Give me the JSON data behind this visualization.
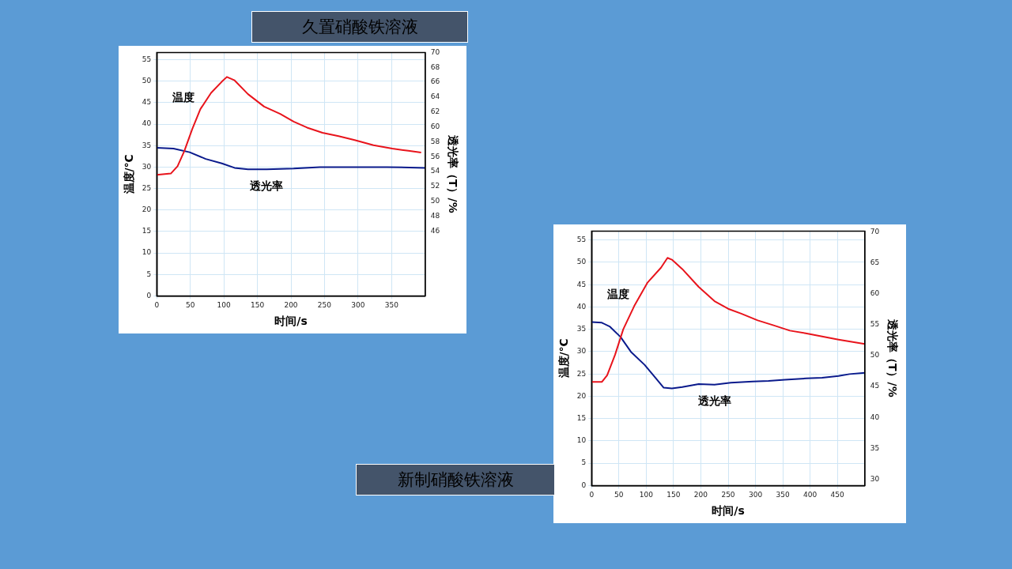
{
  "chart_data": [
    {
      "type": "line",
      "title": "久置硝酸铁溶液",
      "xlabel": "时间/s",
      "ylabel": "温度/℃",
      "y2label": "透光率（T）/%",
      "xlim": [
        0,
        400
      ],
      "xticks": [
        0,
        50,
        100,
        150,
        200,
        250,
        300,
        350
      ],
      "ylim": [
        0,
        56.7
      ],
      "yticks": [
        0,
        5,
        10,
        15,
        20,
        25,
        30,
        35,
        40,
        45,
        50,
        55
      ],
      "y2lim": [
        37.3,
        70
      ],
      "y2ticks": [
        46,
        48,
        50,
        52,
        54,
        56,
        58,
        60,
        62,
        64,
        66,
        68,
        70
      ],
      "grid": true,
      "series": [
        {
          "name": "温度",
          "color": "#e8141c",
          "x": [
            0,
            21,
            31,
            41,
            53,
            65,
            81,
            97,
            104.5,
            116,
            136,
            160,
            184,
            204,
            224,
            247,
            271,
            295,
            323,
            351,
            375,
            394
          ],
          "values": [
            28.2,
            28.5,
            30.2,
            33.7,
            38.9,
            43.5,
            47.3,
            49.9,
            51.0,
            50.2,
            47.0,
            44.1,
            42.4,
            40.6,
            39.2,
            38.0,
            37.2,
            36.3,
            35.1,
            34.3,
            33.8,
            33.4
          ]
        },
        {
          "name": "透光率",
          "color": "#0a1a8c",
          "axis": "y2",
          "x": [
            0,
            25,
            49,
            73,
            97,
            116,
            136,
            164,
            204,
            243,
            283,
            343,
            400
          ],
          "values": [
            57.2,
            57.1,
            56.6,
            55.7,
            55.1,
            54.5,
            54.3,
            54.3,
            54.4,
            54.6,
            54.6,
            54.6,
            54.5
          ]
        }
      ],
      "legend": false
    },
    {
      "type": "line",
      "title": "新制硝酸铁溶液",
      "xlabel": "时间/s",
      "ylabel": "温度/℃",
      "y2label": "透光率（T）/%",
      "xlim": [
        0,
        500
      ],
      "xticks": [
        0,
        50,
        100,
        150,
        200,
        250,
        300,
        350,
        400,
        450
      ],
      "ylim": [
        0,
        57
      ],
      "yticks": [
        0,
        5,
        10,
        15,
        20,
        25,
        30,
        35,
        40,
        45,
        50,
        55
      ],
      "y2lim": [
        29,
        70.1
      ],
      "y2ticks": [
        30,
        35,
        40,
        45,
        50,
        55,
        60,
        65,
        70
      ],
      "grid": true,
      "series": [
        {
          "name": "温度",
          "color": "#e8141c",
          "x": [
            0,
            18.7,
            28.5,
            43,
            58,
            78,
            102,
            127,
            139,
            147,
            166,
            196,
            225,
            250,
            274,
            304,
            333,
            363,
            392,
            422,
            452,
            500
          ],
          "values": [
            23.2,
            23.2,
            24.7,
            29.3,
            35.0,
            40.2,
            45.4,
            48.8,
            51.0,
            50.6,
            48.5,
            44.5,
            41.3,
            39.6,
            38.5,
            37.0,
            35.9,
            34.7,
            34.1,
            33.4,
            32.7,
            31.7
          ]
        },
        {
          "name": "透光率",
          "color": "#0a1a8c",
          "axis": "y2",
          "x": [
            0,
            18.7,
            33,
            53,
            72,
            97,
            117,
            132,
            147,
            166,
            196,
            225,
            255,
            295,
            324,
            354,
            393,
            422,
            452,
            472,
            500
          ],
          "values": [
            55.4,
            55.3,
            54.7,
            53.0,
            50.6,
            48.5,
            46.4,
            44.8,
            44.7,
            44.9,
            45.4,
            45.3,
            45.6,
            45.8,
            45.9,
            46.1,
            46.3,
            46.4,
            46.7,
            47.0,
            47.2
          ]
        }
      ],
      "legend": false
    }
  ]
}
